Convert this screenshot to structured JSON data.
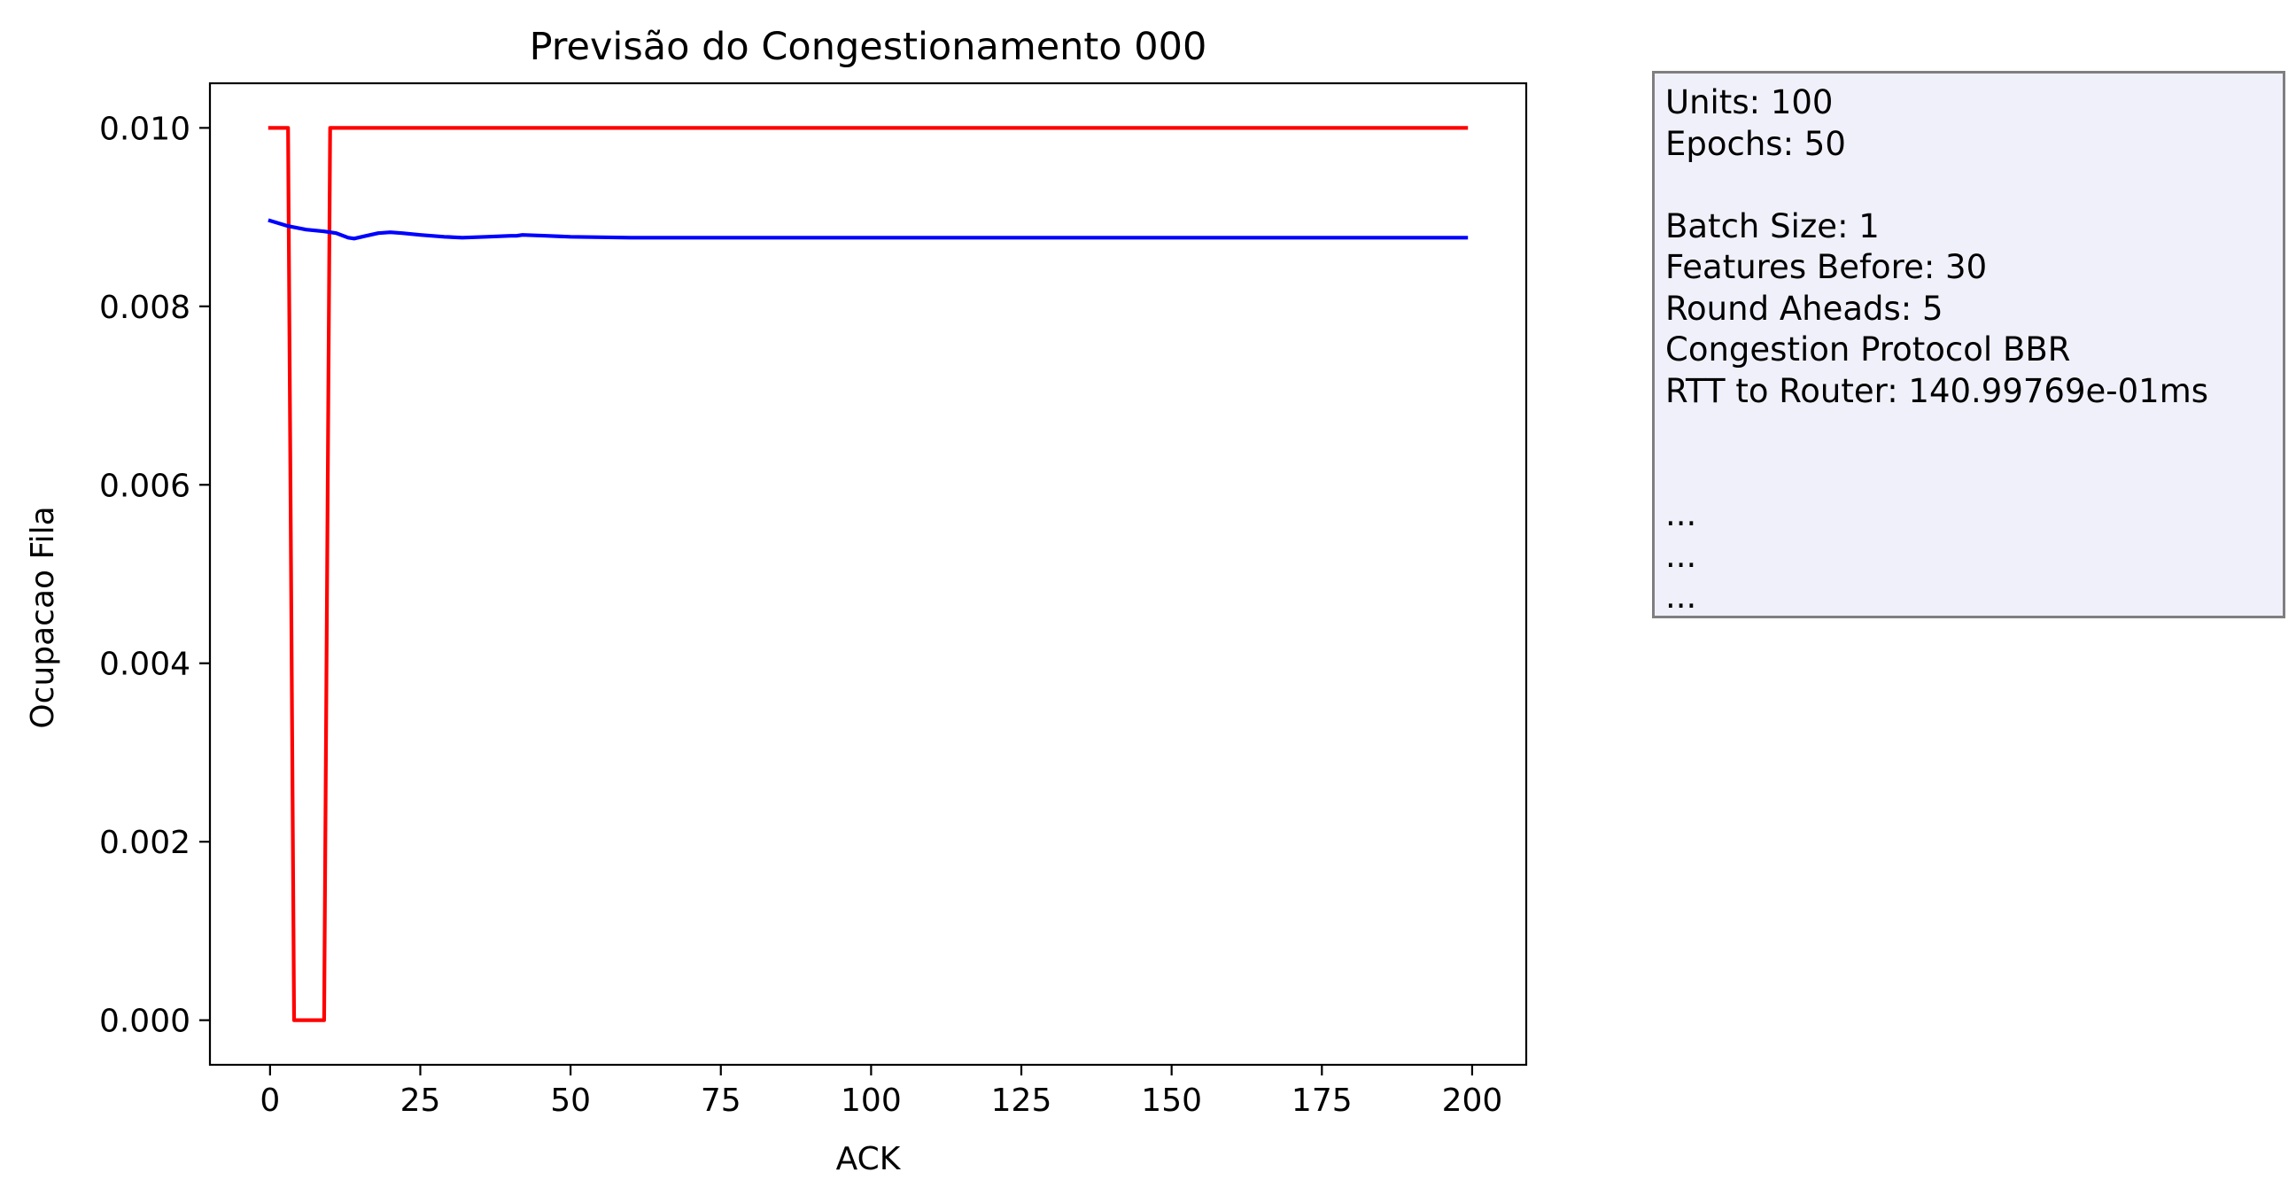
{
  "chart_data": {
    "type": "line",
    "title": "Previsão do Congestionamento 000",
    "xlabel": "ACK",
    "ylabel": "Ocupacao Fila",
    "xlim": [
      -10,
      209
    ],
    "ylim": [
      -0.0005,
      0.0105
    ],
    "xticks": [
      0,
      25,
      50,
      75,
      100,
      125,
      150,
      175,
      200
    ],
    "xtick_labels": [
      "0",
      "25",
      "50",
      "75",
      "100",
      "125",
      "150",
      "175",
      "200"
    ],
    "yticks": [
      0.0,
      0.002,
      0.004,
      0.006,
      0.008,
      0.01
    ],
    "ytick_labels": [
      "0.000",
      "0.002",
      "0.004",
      "0.006",
      "0.008",
      "0.010"
    ],
    "grid": false,
    "legend": null,
    "series": [
      {
        "color": "#ff0000",
        "x": [
          0,
          3,
          4,
          9,
          10,
          199
        ],
        "y": [
          0.01,
          0.01,
          0.0,
          0.0,
          0.01,
          0.01
        ]
      },
      {
        "color": "#0000ff",
        "x": [
          0,
          3,
          6,
          9,
          11,
          13,
          14,
          16,
          18,
          20,
          22,
          25,
          29,
          32,
          36,
          40,
          41,
          42,
          46,
          50,
          60,
          80,
          120,
          160,
          199
        ],
        "y": [
          0.00896,
          0.0089,
          0.00886,
          0.00884,
          0.00882,
          0.00877,
          0.00876,
          0.00879,
          0.00882,
          0.00883,
          0.00882,
          0.0088,
          0.00878,
          0.00877,
          0.00878,
          0.00879,
          0.00879,
          0.0088,
          0.00879,
          0.00878,
          0.00877,
          0.00877,
          0.00877,
          0.00877,
          0.00877
        ]
      }
    ]
  },
  "info_box": {
    "lines": [
      "Units: 100",
      "Epochs: 50",
      "",
      "Batch Size: 1",
      "Features Before: 30",
      "Round Aheads: 5",
      "Congestion Protocol BBR",
      "RTT to Router: 140.99769e-01ms",
      "",
      "",
      "...",
      "...",
      "..."
    ]
  }
}
